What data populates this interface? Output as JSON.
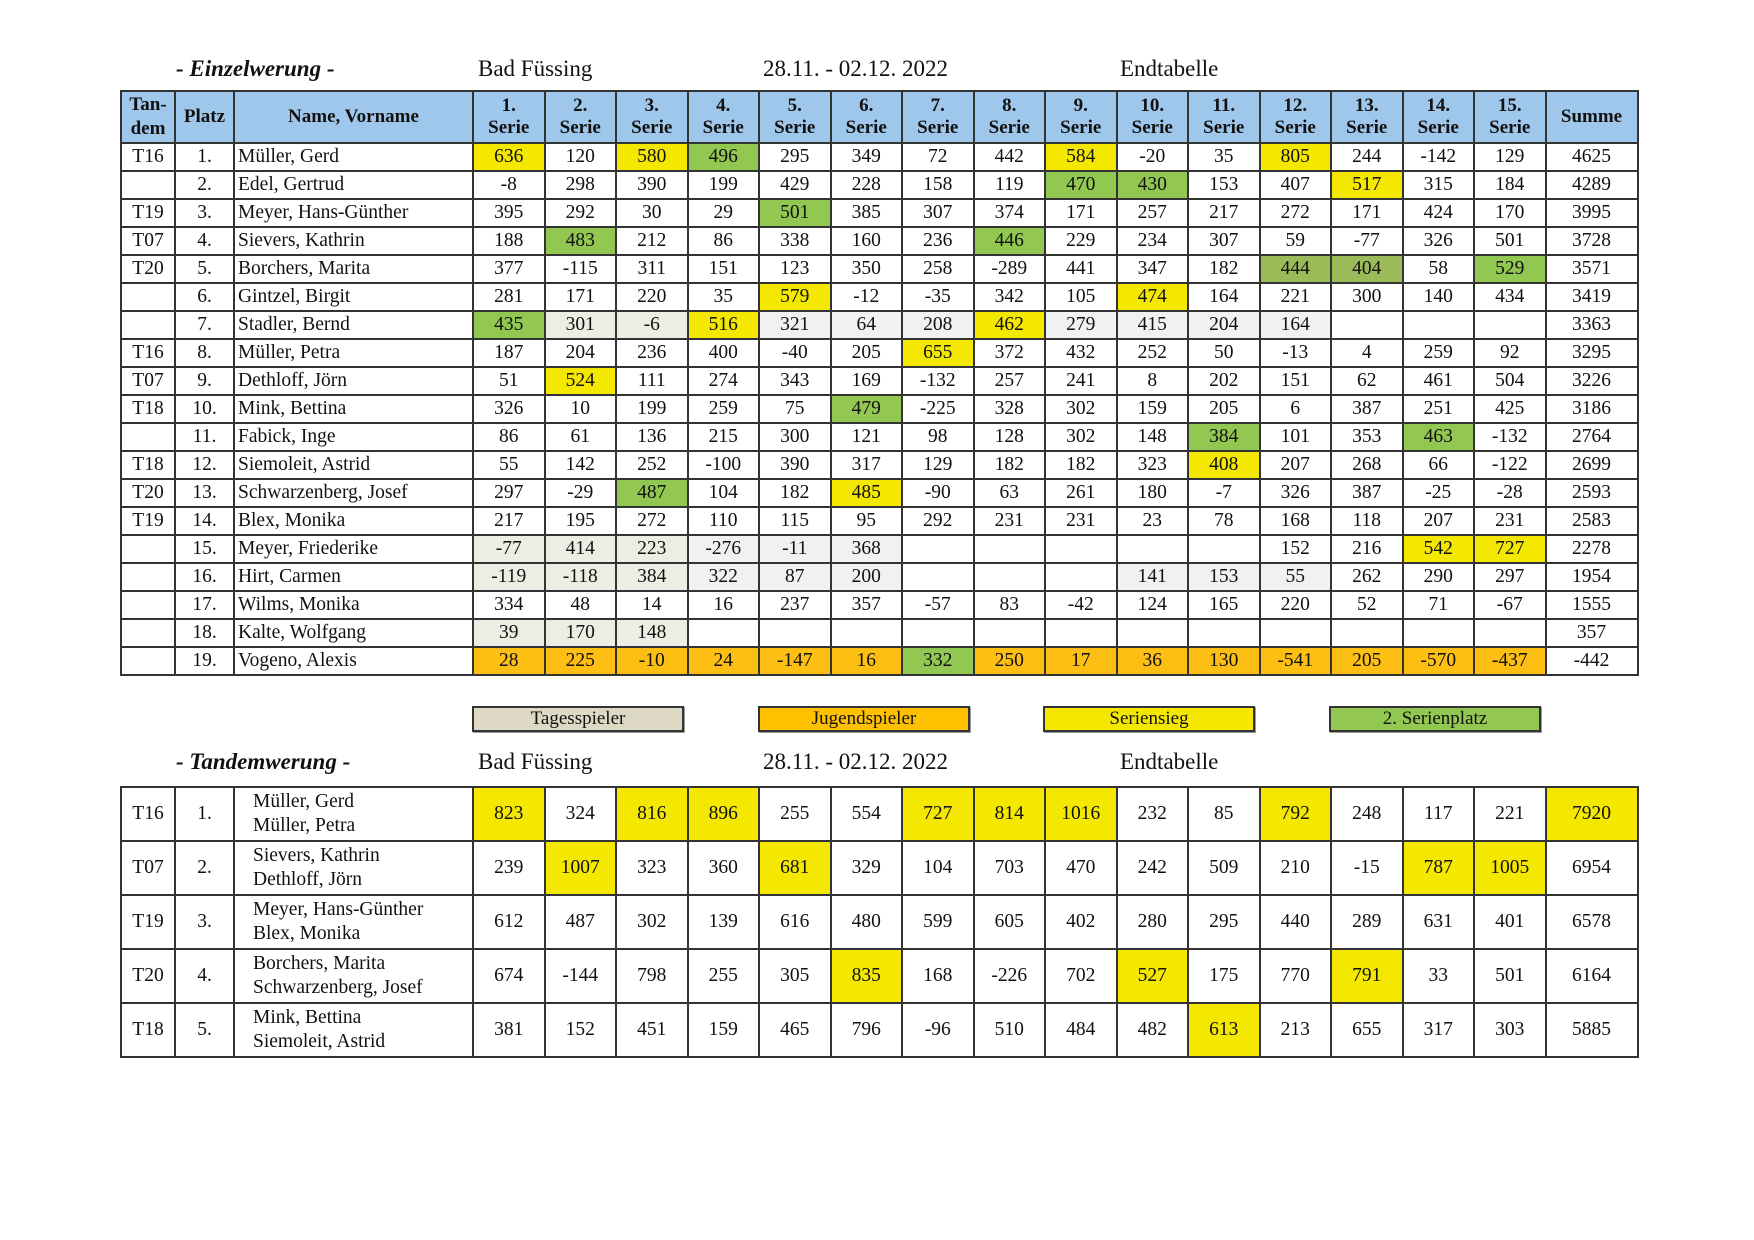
{
  "einzel_header": {
    "section": "- Einzelwerung -",
    "location": "Bad Füssing",
    "dates": "28.11. - 02.12. 2022",
    "status": "Endtabelle"
  },
  "columns": {
    "tandem": "Tan-dem",
    "platz": "Platz",
    "name": "Name, Vorname",
    "series": [
      "1.",
      "2.",
      "3.",
      "4.",
      "5.",
      "6.",
      "7.",
      "8.",
      "9.",
      "10.",
      "11.",
      "12.",
      "13.",
      "14.",
      "15."
    ],
    "serie_word": "Serie",
    "summe": "Summe"
  },
  "highlight_colors": {
    "y": "#f5e800",
    "g": "#92c752",
    "o": "#fdbf14",
    "b": "#eeede3",
    "s": "#f1f1f1",
    "d": "#9bbb59"
  },
  "einzel_rows": [
    {
      "tandem": "T16",
      "platz": "1.",
      "name": "Müller, Gerd",
      "series": [
        "636",
        "120",
        "580",
        "496",
        "295",
        "349",
        "72",
        "442",
        "584",
        "-20",
        "35",
        "805",
        "244",
        "-142",
        "129"
      ],
      "summe": "4625",
      "hl": "y.yg....y..y...."
    },
    {
      "tandem": "",
      "platz": "2.",
      "name": "Edel, Gertrud",
      "series": [
        "-8",
        "298",
        "390",
        "199",
        "429",
        "228",
        "158",
        "119",
        "470",
        "430",
        "153",
        "407",
        "517",
        "315",
        "184"
      ],
      "summe": "4289",
      "hl": "........gg..y..."
    },
    {
      "tandem": "T19",
      "platz": "3.",
      "name": "Meyer, Hans-Günther",
      "series": [
        "395",
        "292",
        "30",
        "29",
        "501",
        "385",
        "307",
        "374",
        "171",
        "257",
        "217",
        "272",
        "171",
        "424",
        "170"
      ],
      "summe": "3995",
      "hl": "....g..........."
    },
    {
      "tandem": "T07",
      "platz": "4.",
      "name": "Sievers, Kathrin",
      "series": [
        "188",
        "483",
        "212",
        "86",
        "338",
        "160",
        "236",
        "446",
        "229",
        "234",
        "307",
        "59",
        "-77",
        "326",
        "501"
      ],
      "summe": "3728",
      "hl": ".g.....g........"
    },
    {
      "tandem": "T20",
      "platz": "5.",
      "name": "Borchers, Marita",
      "series": [
        "377",
        "-115",
        "311",
        "151",
        "123",
        "350",
        "258",
        "-289",
        "441",
        "347",
        "182",
        "444",
        "404",
        "58",
        "529"
      ],
      "summe": "3571",
      "hl": "...........dd.g."
    },
    {
      "tandem": "",
      "platz": "6.",
      "name": "Gintzel, Birgit",
      "series": [
        "281",
        "171",
        "220",
        "35",
        "579",
        "-12",
        "-35",
        "342",
        "105",
        "474",
        "164",
        "221",
        "300",
        "140",
        "434"
      ],
      "summe": "3419",
      "hl": "....y....y......"
    },
    {
      "tandem": "",
      "platz": "7.",
      "name": "Stadler, Bernd",
      "series": [
        "435",
        "301",
        "-6",
        "516",
        "321",
        "64",
        "208",
        "462",
        "279",
        "415",
        "204",
        "164",
        "",
        "",
        ""
      ],
      "summe": "3363",
      "hl": "gbbysssyssss...."
    },
    {
      "tandem": "T16",
      "platz": "8.",
      "name": "Müller, Petra",
      "series": [
        "187",
        "204",
        "236",
        "400",
        "-40",
        "205",
        "655",
        "372",
        "432",
        "252",
        "50",
        "-13",
        "4",
        "259",
        "92"
      ],
      "summe": "3295",
      "hl": "......y........."
    },
    {
      "tandem": "T07",
      "platz": "9.",
      "name": "Dethloff, Jörn",
      "series": [
        "51",
        "524",
        "111",
        "274",
        "343",
        "169",
        "-132",
        "257",
        "241",
        "8",
        "202",
        "151",
        "62",
        "461",
        "504"
      ],
      "summe": "3226",
      "hl": ".y.............."
    },
    {
      "tandem": "T18",
      "platz": "10.",
      "name": "Mink, Bettina",
      "series": [
        "326",
        "10",
        "199",
        "259",
        "75",
        "479",
        "-225",
        "328",
        "302",
        "159",
        "205",
        "6",
        "387",
        "251",
        "425"
      ],
      "summe": "3186",
      "hl": ".....g.........."
    },
    {
      "tandem": "",
      "platz": "11.",
      "name": "Fabick, Inge",
      "series": [
        "86",
        "61",
        "136",
        "215",
        "300",
        "121",
        "98",
        "128",
        "302",
        "148",
        "384",
        "101",
        "353",
        "463",
        "-132"
      ],
      "summe": "2764",
      "hl": "..........g..g.."
    },
    {
      "tandem": "T18",
      "platz": "12.",
      "name": "Siemoleit, Astrid",
      "series": [
        "55",
        "142",
        "252",
        "-100",
        "390",
        "317",
        "129",
        "182",
        "182",
        "323",
        "408",
        "207",
        "268",
        "66",
        "-122"
      ],
      "summe": "2699",
      "hl": "..........y....."
    },
    {
      "tandem": "T20",
      "platz": "13.",
      "name": "Schwarzenberg, Josef",
      "series": [
        "297",
        "-29",
        "487",
        "104",
        "182",
        "485",
        "-90",
        "63",
        "261",
        "180",
        "-7",
        "326",
        "387",
        "-25",
        "-28"
      ],
      "summe": "2593",
      "hl": "..g..y.........."
    },
    {
      "tandem": "T19",
      "platz": "14.",
      "name": "Blex, Monika",
      "series": [
        "217",
        "195",
        "272",
        "110",
        "115",
        "95",
        "292",
        "231",
        "231",
        "23",
        "78",
        "168",
        "118",
        "207",
        "231"
      ],
      "summe": "2583",
      "hl": "................"
    },
    {
      "tandem": "",
      "platz": "15.",
      "name": "Meyer, Friederike",
      "series": [
        "-77",
        "414",
        "223",
        "-276",
        "-11",
        "368",
        "",
        "",
        "",
        "",
        "",
        "152",
        "216",
        "542",
        "727"
      ],
      "summe": "2278",
      "hl": "bbbsss.......yy."
    },
    {
      "tandem": "",
      "platz": "16.",
      "name": "Hirt, Carmen",
      "series": [
        "-119",
        "-118",
        "384",
        "322",
        "87",
        "200",
        "",
        "",
        "",
        "141",
        "153",
        "55",
        "262",
        "290",
        "297"
      ],
      "summe": "1954",
      "hl": "bbbsss...sss...."
    },
    {
      "tandem": "",
      "platz": "17.",
      "name": "Wilms, Monika",
      "series": [
        "334",
        "48",
        "14",
        "16",
        "237",
        "357",
        "-57",
        "83",
        "-42",
        "124",
        "165",
        "220",
        "52",
        "71",
        "-67"
      ],
      "summe": "1555",
      "hl": "................"
    },
    {
      "tandem": "",
      "platz": "18.",
      "name": "Kalte, Wolfgang",
      "series": [
        "39",
        "170",
        "148",
        "",
        "",
        "",
        "",
        "",
        "",
        "",
        "",
        "",
        "",
        "",
        ""
      ],
      "summe": "357",
      "hl": "bbb............."
    },
    {
      "tandem": "",
      "platz": "19.",
      "name": "Vogeno, Alexis",
      "series": [
        "28",
        "225",
        "-10",
        "24",
        "-147",
        "16",
        "332",
        "250",
        "17",
        "36",
        "130",
        "-541",
        "205",
        "-570",
        "-437"
      ],
      "summe": "-442",
      "hl": "oooooogoooooooo."
    }
  ],
  "legend": [
    {
      "label": "Tagesspieler",
      "color": "#ddd9c4"
    },
    {
      "label": "Jugendspieler",
      "color": "#ffc000"
    },
    {
      "label": "Seriensieg",
      "color": "#f5e800"
    },
    {
      "label": "2. Serienplatz",
      "color": "#92c752"
    }
  ],
  "tandem_header": {
    "section": "- Tandemwerung -",
    "location": "Bad Füssing",
    "dates": "28.11. - 02.12. 2022",
    "status": "Endtabelle"
  },
  "tandem_rows": [
    {
      "tandem": "T16",
      "platz": "1.",
      "names": [
        "Müller, Gerd",
        "Müller, Petra"
      ],
      "series": [
        "823",
        "324",
        "816",
        "896",
        "255",
        "554",
        "727",
        "814",
        "1016",
        "232",
        "85",
        "792",
        "248",
        "117",
        "221"
      ],
      "summe": "7920",
      "hl": "y.yy..yyy..y...y"
    },
    {
      "tandem": "T07",
      "platz": "2.",
      "names": [
        "Sievers, Kathrin",
        "Dethloff, Jörn"
      ],
      "series": [
        "239",
        "1007",
        "323",
        "360",
        "681",
        "329",
        "104",
        "703",
        "470",
        "242",
        "509",
        "210",
        "-15",
        "787",
        "1005"
      ],
      "summe": "6954",
      "hl": ".y..y........yy."
    },
    {
      "tandem": "T19",
      "platz": "3.",
      "names": [
        "Meyer, Hans-Günther",
        "Blex, Monika"
      ],
      "series": [
        "612",
        "487",
        "302",
        "139",
        "616",
        "480",
        "599",
        "605",
        "402",
        "280",
        "295",
        "440",
        "289",
        "631",
        "401"
      ],
      "summe": "6578",
      "hl": "................"
    },
    {
      "tandem": "T20",
      "platz": "4.",
      "names": [
        "Borchers, Marita",
        "Schwarzenberg, Josef"
      ],
      "series": [
        "674",
        "-144",
        "798",
        "255",
        "305",
        "835",
        "168",
        "-226",
        "702",
        "527",
        "175",
        "770",
        "791",
        "33",
        "501"
      ],
      "summe": "6164",
      "hl": ".....y...y..y..."
    },
    {
      "tandem": "T18",
      "platz": "5.",
      "names": [
        "Mink, Bettina",
        "Siemoleit, Astrid"
      ],
      "series": [
        "381",
        "152",
        "451",
        "159",
        "465",
        "796",
        "-96",
        "510",
        "484",
        "482",
        "613",
        "213",
        "655",
        "317",
        "303"
      ],
      "summe": "5885",
      "hl": "..........y....."
    }
  ]
}
